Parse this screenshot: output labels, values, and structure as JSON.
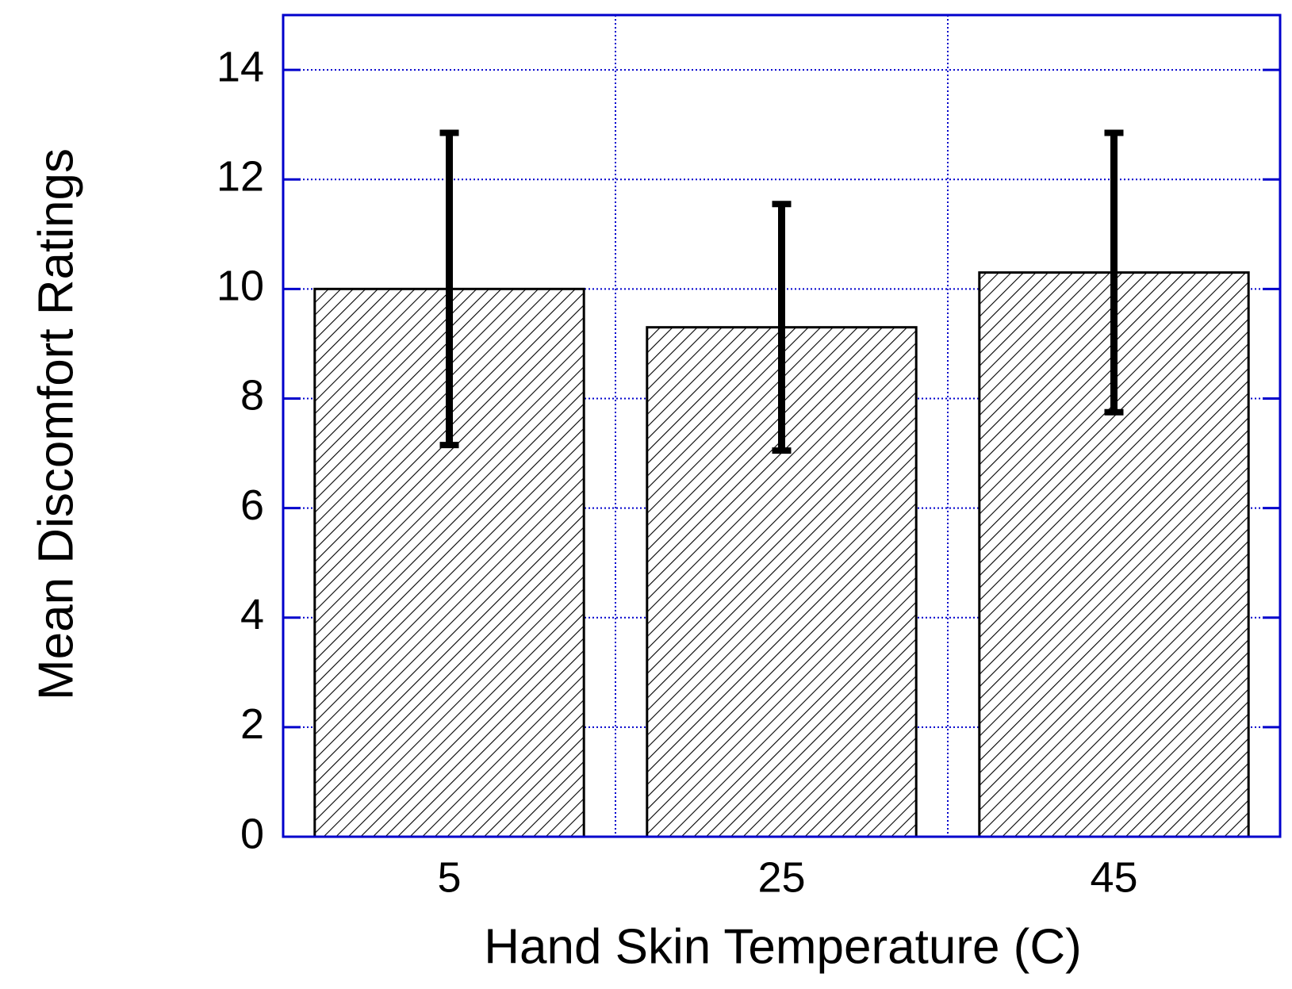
{
  "chart_data": {
    "type": "bar",
    "x_label": "Hand Skin Temperature (C)",
    "y_label": "Mean Discomfort Ratings",
    "categories": [
      "5",
      "25",
      "45"
    ],
    "values": [
      10.0,
      9.3,
      10.3
    ],
    "errors": [
      2.85,
      2.25,
      2.55
    ],
    "color": "#000000",
    "hatch": true,
    "axis_color": "#0000cc",
    "ylim": [
      0,
      15
    ],
    "yticks": [
      0,
      2,
      4,
      6,
      8,
      10,
      12,
      14
    ],
    "grid": true
  }
}
